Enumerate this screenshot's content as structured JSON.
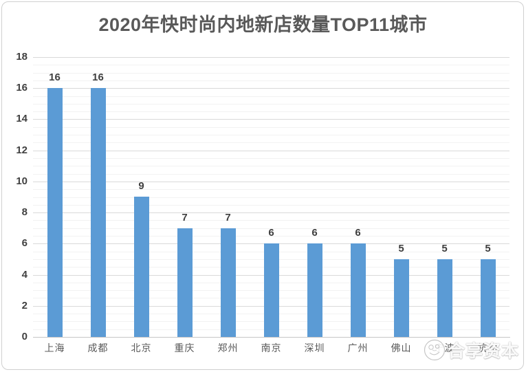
{
  "title": {
    "text": "2020年快时尚内地新店数量TOP11城市",
    "color": "#595959"
  },
  "watermark": {
    "text": "合享资本",
    "logo": "hexiang-capital-logo"
  },
  "chart_data": {
    "type": "bar",
    "title": "2020年快时尚内地新店数量TOP11城市",
    "categories": [
      "上海",
      "成都",
      "北京",
      "重庆",
      "郑州",
      "南京",
      "深圳",
      "广州",
      "佛山",
      "宁波",
      "杭州"
    ],
    "values": [
      16,
      16,
      9,
      7,
      7,
      6,
      6,
      6,
      5,
      5,
      5
    ],
    "data_labels": [
      "16",
      "16",
      "9",
      "7",
      "7",
      "6",
      "6",
      "6",
      "5",
      "5",
      "5"
    ],
    "xlabel": "",
    "ylabel": "",
    "ylim": [
      0,
      18
    ],
    "y_tick_step": 2,
    "y_tick_labels": [
      "0",
      "2",
      "4",
      "6",
      "8",
      "10",
      "12",
      "14",
      "16",
      "18"
    ],
    "minor_grid_step": 0.5,
    "grid": true,
    "legend_position": "none",
    "colors": {
      "bar": "#5B9BD5",
      "major_grid": "#D9D9D9",
      "minor_grid": "#F2F2F2",
      "axis_line": "#C6C6C6",
      "y_tick_label": "#404040",
      "data_label": "#3F3F3F",
      "category_label": "#595959",
      "frame_border": "#CFCFCF"
    }
  }
}
